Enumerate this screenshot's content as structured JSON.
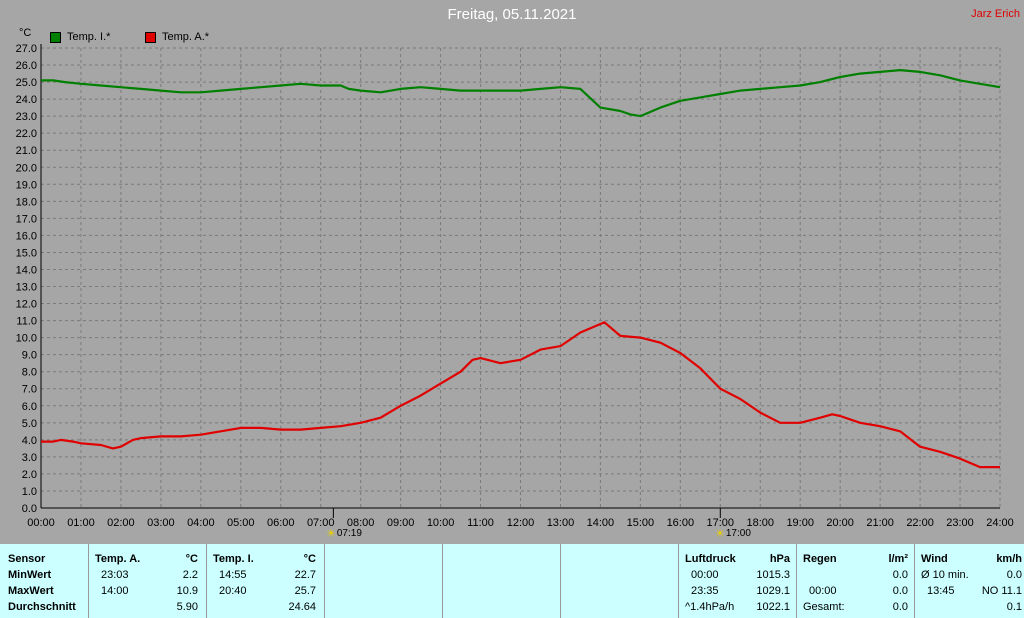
{
  "title": "Freitag, 05.11.2021",
  "author": "Jarz Erich",
  "unit_label": "°C",
  "colors": {
    "background": "#a6a6a6",
    "grid": "#808080",
    "series_inner": "#008000",
    "series_outer": "#e00000",
    "table_bg": "#ccffff"
  },
  "chart_data": {
    "type": "line",
    "ylabel": "°C",
    "ylim": [
      0,
      27
    ],
    "ytick_step": 1,
    "xlim": [
      0,
      24
    ],
    "xticks": [
      "00:00",
      "01:00",
      "02:00",
      "03:00",
      "04:00",
      "05:00",
      "06:00",
      "07:00",
      "08:00",
      "09:00",
      "10:00",
      "11:00",
      "12:00",
      "13:00",
      "14:00",
      "15:00",
      "16:00",
      "17:00",
      "18:00",
      "19:00",
      "20:00",
      "21:00",
      "22:00",
      "23:00",
      "24:00"
    ],
    "grid": true,
    "legend": "top-left",
    "series": [
      {
        "name": "Temp. I.*",
        "color": "#008000",
        "x": [
          0,
          0.3,
          0.6,
          1,
          1.5,
          2,
          2.5,
          3,
          3.5,
          4,
          4.5,
          5,
          5.5,
          6,
          6.5,
          7,
          7.5,
          7.7,
          8,
          8.5,
          9,
          9.5,
          10,
          10.5,
          11,
          11.5,
          12,
          12.5,
          13,
          13.5,
          14,
          14.5,
          14.75,
          15,
          15.5,
          16,
          16.5,
          17,
          17.5,
          18,
          18.5,
          19,
          19.5,
          20,
          20.5,
          21,
          21.5,
          22,
          22.5,
          23,
          23.5,
          24
        ],
        "y": [
          25.1,
          25.1,
          25.0,
          24.9,
          24.8,
          24.7,
          24.6,
          24.5,
          24.4,
          24.4,
          24.5,
          24.6,
          24.7,
          24.8,
          24.9,
          24.8,
          24.8,
          24.6,
          24.5,
          24.4,
          24.6,
          24.7,
          24.6,
          24.5,
          24.5,
          24.5,
          24.5,
          24.6,
          24.7,
          24.6,
          23.5,
          23.3,
          23.1,
          23.0,
          23.5,
          23.9,
          24.1,
          24.3,
          24.5,
          24.6,
          24.7,
          24.8,
          25.0,
          25.3,
          25.5,
          25.6,
          25.7,
          25.6,
          25.4,
          25.1,
          24.9,
          24.7
        ]
      },
      {
        "name": "Temp. A.*",
        "color": "#e00000",
        "x": [
          0,
          0.3,
          0.5,
          0.8,
          1,
          1.5,
          1.8,
          2,
          2.3,
          2.5,
          3,
          3.5,
          4,
          4.5,
          5,
          5.5,
          6,
          6.5,
          7,
          7.5,
          8,
          8.5,
          9,
          9.5,
          10,
          10.5,
          10.8,
          11,
          11.5,
          12,
          12.5,
          13,
          13.5,
          14,
          14.1,
          14.5,
          15,
          15.5,
          16,
          16.5,
          17,
          17.5,
          18,
          18.5,
          19,
          19.5,
          19.8,
          20,
          20.5,
          21,
          21.5,
          22,
          22.5,
          23,
          23.5,
          24
        ],
        "y": [
          3.9,
          3.9,
          4.0,
          3.9,
          3.8,
          3.7,
          3.5,
          3.6,
          4.0,
          4.1,
          4.2,
          4.2,
          4.3,
          4.5,
          4.7,
          4.7,
          4.6,
          4.6,
          4.7,
          4.8,
          5.0,
          5.3,
          6.0,
          6.6,
          7.3,
          8.0,
          8.7,
          8.8,
          8.5,
          8.7,
          9.3,
          9.5,
          10.3,
          10.8,
          10.9,
          10.1,
          10.0,
          9.7,
          9.1,
          8.2,
          7.0,
          6.4,
          5.6,
          5.0,
          5.0,
          5.3,
          5.5,
          5.4,
          5.0,
          4.8,
          4.5,
          3.6,
          3.3,
          2.9,
          2.4,
          2.4
        ]
      }
    ]
  },
  "legend": {
    "inner": "Temp. I.*",
    "outer": "Temp. A.*"
  },
  "sun": {
    "sunrise": "07:19",
    "sunset": "17:00"
  },
  "table": {
    "sensor": {
      "header": "Sensor",
      "min": "MinWert",
      "max": "MaxWert",
      "avg": "Durchschnitt"
    },
    "temp_a": {
      "header": "Temp. A.",
      "unit": "°C",
      "min_time": "23:03",
      "min_val": "2.2",
      "max_time": "14:00",
      "max_val": "10.9",
      "avg": "5.90"
    },
    "temp_i": {
      "header": "Temp. I.",
      "unit": "°C",
      "min_time": "14:55",
      "min_val": "22.7",
      "max_time": "20:40",
      "max_val": "25.7",
      "avg": "24.64"
    },
    "pressure": {
      "header": "Luftdruck",
      "unit": "hPa",
      "min_time": "00:00",
      "min_val": "1015.3",
      "max_time": "23:35",
      "max_val": "1029.1",
      "trend_label": "^1.4hPa/h",
      "trend_val": "1022.1"
    },
    "rain": {
      "header": "Regen",
      "unit": "l/m²",
      "r1": "0.0",
      "r2_time": "00:00",
      "r2_val": "0.0",
      "r3_label": "Gesamt:",
      "r3_val": "0.0"
    },
    "wind": {
      "header": "Wind",
      "unit": "km/h",
      "r1_label": "Ø 10 min.",
      "r1_val": "0.0",
      "r2_time": "13:45",
      "r2_val": "NO 11.1",
      "r3_val": "0.1"
    }
  }
}
